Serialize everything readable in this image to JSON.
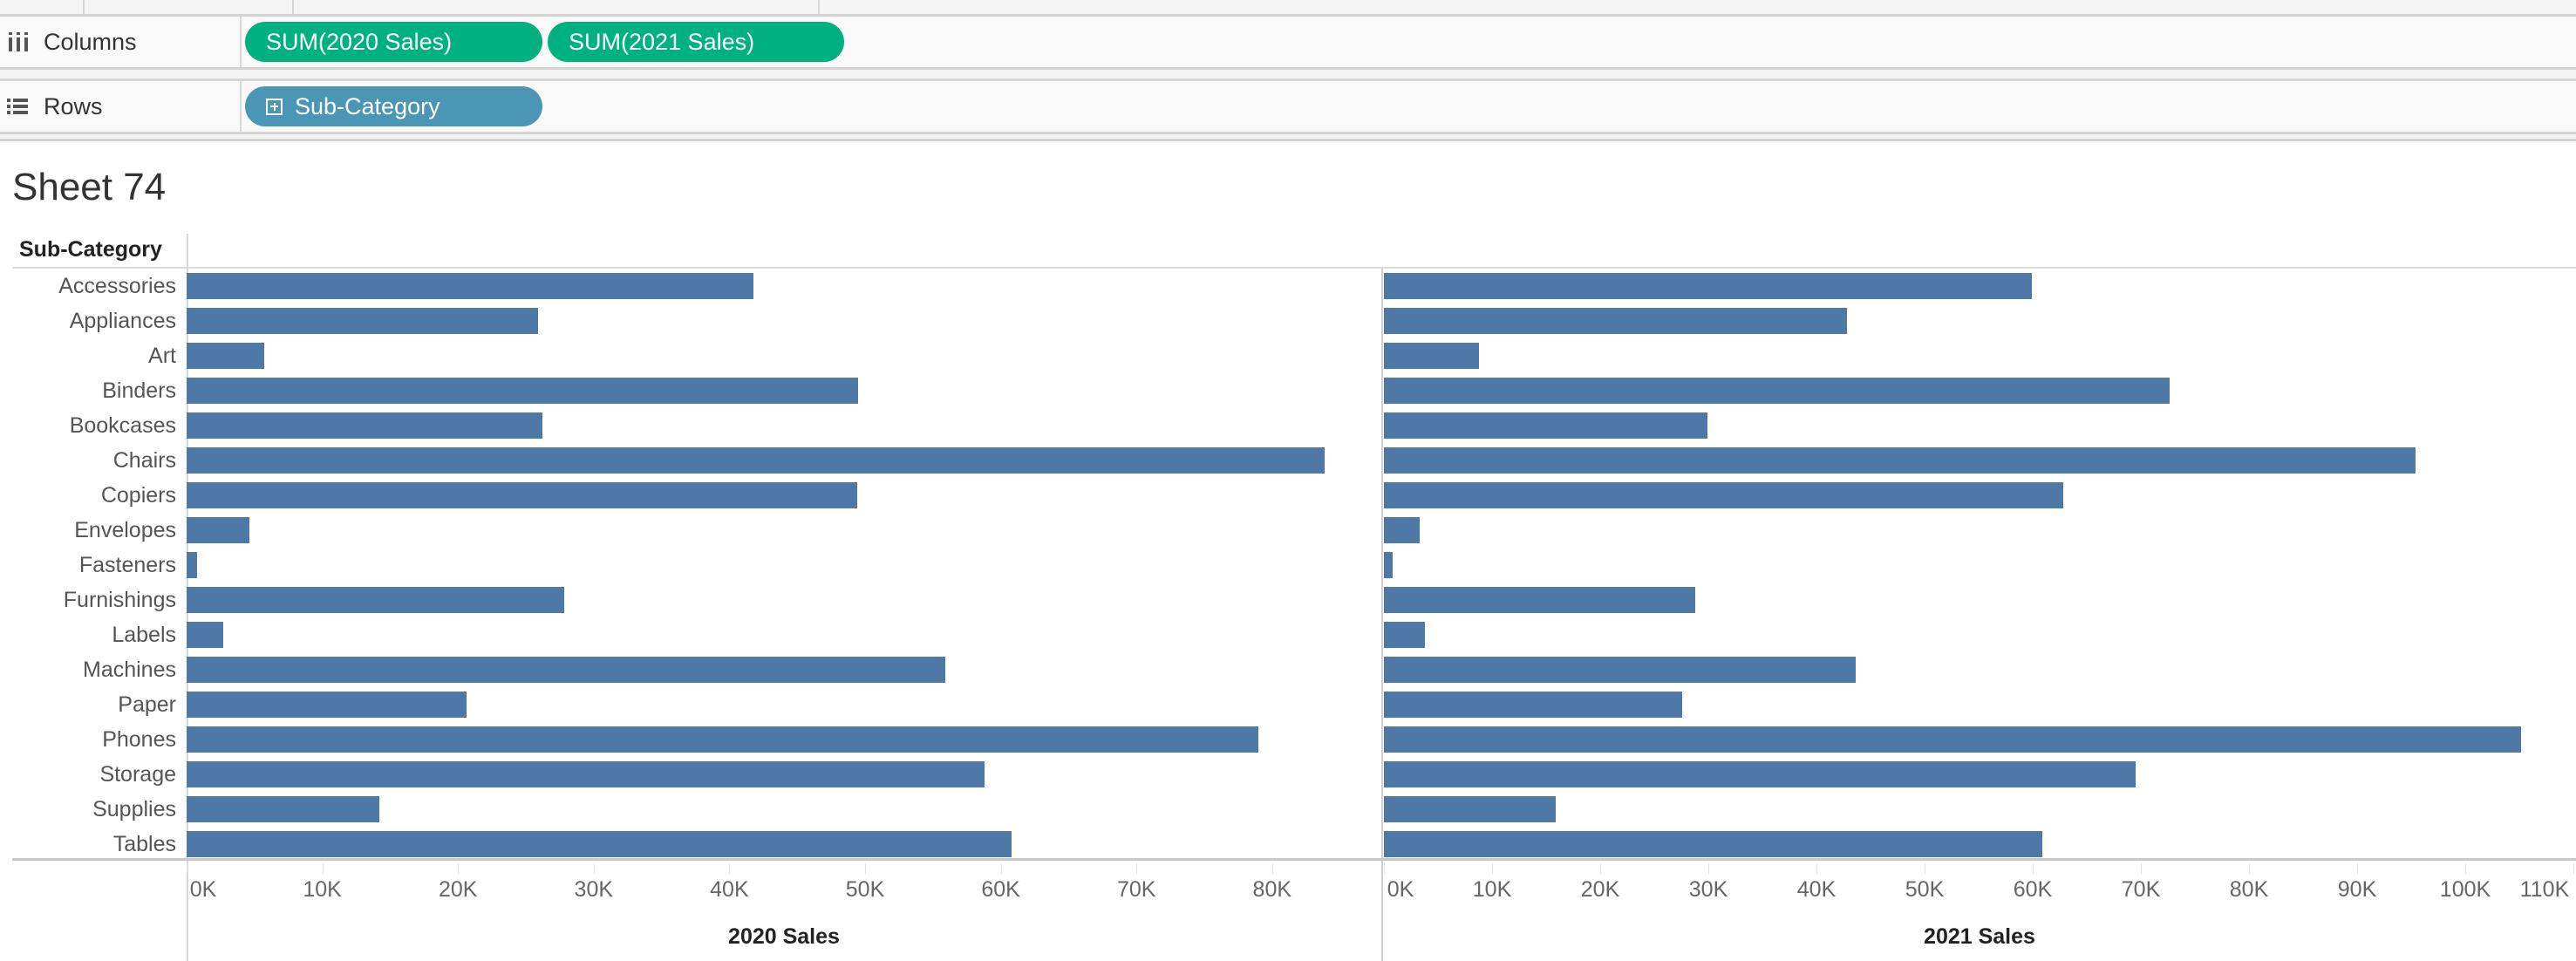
{
  "shelves": {
    "columns": {
      "label": "Columns",
      "icon": "columns-icon",
      "pills": [
        "SUM(2020 Sales)",
        "SUM(2021 Sales)"
      ],
      "color": "#00b180"
    },
    "rows": {
      "label": "Rows",
      "icon": "rows-list-icon",
      "pills": [
        "Sub-Category"
      ],
      "color": "#4b96b4"
    }
  },
  "sheet_title": "Sheet 74",
  "chart_data": {
    "type": "bar",
    "orientation": "horizontal",
    "row_header": "Sub-Category",
    "bar_color": "#4e79a7",
    "grid": false,
    "categories": [
      "Accessories",
      "Appliances",
      "Art",
      "Binders",
      "Bookcases",
      "Chairs",
      "Copiers",
      "Envelopes",
      "Fasteners",
      "Furnishings",
      "Labels",
      "Machines",
      "Paper",
      "Phones",
      "Storage",
      "Supplies",
      "Tables"
    ],
    "panes": [
      {
        "xlabel": "2020 Sales",
        "xlim": [
          0,
          88000
        ],
        "ticks": [
          0,
          10000,
          20000,
          30000,
          40000,
          50000,
          60000,
          70000,
          80000
        ],
        "tick_labels": [
          "0K",
          "10K",
          "20K",
          "30K",
          "40K",
          "50K",
          "60K",
          "70K",
          "80K"
        ],
        "values": [
          41800,
          25900,
          5700,
          49500,
          26200,
          83900,
          49400,
          4600,
          800,
          27800,
          2700,
          55900,
          20600,
          79000,
          58800,
          14200,
          60800
        ]
      },
      {
        "xlabel": "2021 Sales",
        "xlim": [
          0,
          110000
        ],
        "ticks": [
          0,
          10000,
          20000,
          30000,
          40000,
          50000,
          60000,
          70000,
          80000,
          90000,
          100000,
          110000
        ],
        "tick_labels": [
          "0K",
          "10K",
          "20K",
          "30K",
          "40K",
          "50K",
          "60K",
          "70K",
          "80K",
          "90K",
          "100K",
          "110K"
        ],
        "values": [
          59900,
          42800,
          8800,
          72700,
          29900,
          95400,
          62800,
          3300,
          800,
          28800,
          3800,
          43600,
          27600,
          105200,
          69500,
          15900,
          60900
        ]
      }
    ]
  }
}
